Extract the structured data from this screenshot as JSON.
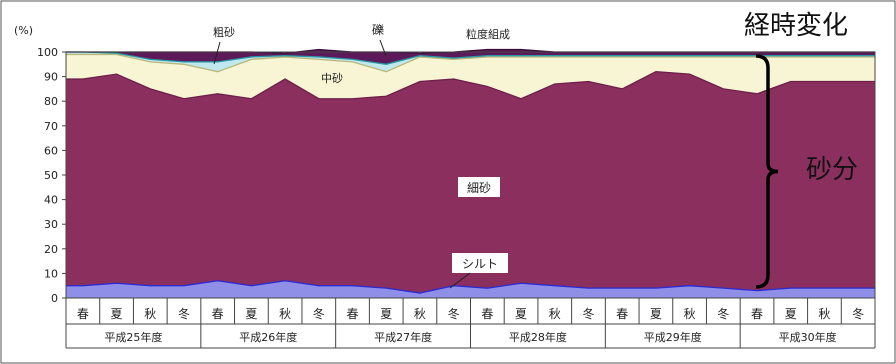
{
  "chart_data": {
    "type": "area",
    "stacked": true,
    "title": "粒度組成",
    "ylabel": "(%)",
    "ylim": [
      0,
      100
    ],
    "yticks": [
      0,
      10,
      20,
      30,
      40,
      50,
      60,
      70,
      80,
      90,
      100
    ],
    "categories": [
      "春",
      "夏",
      "秋",
      "冬",
      "春",
      "夏",
      "秋",
      "冬",
      "春",
      "夏",
      "秋",
      "冬",
      "春",
      "夏",
      "秋",
      "冬",
      "春",
      "夏",
      "秋",
      "冬",
      "春",
      "夏",
      "秋",
      "冬"
    ],
    "groups": [
      {
        "label": "平成25年度",
        "count": 4
      },
      {
        "label": "平成26年度",
        "count": 4
      },
      {
        "label": "平成27年度",
        "count": 4
      },
      {
        "label": "平成28年度",
        "count": 4
      },
      {
        "label": "平成29年度",
        "count": 4
      },
      {
        "label": "平成30年度",
        "count": 4
      }
    ],
    "series": [
      {
        "name": "シルト",
        "color": "#8f8fe8",
        "edge": "#2b2bd0",
        "values": [
          5,
          6,
          5,
          5,
          7,
          5,
          7,
          5,
          5,
          4,
          2,
          5,
          4,
          6,
          5,
          4,
          4,
          4,
          5,
          4,
          3,
          4,
          4,
          4
        ]
      },
      {
        "name": "細砂",
        "color": "#8b2f5e",
        "edge": "#6e1f4a",
        "values": [
          84,
          85,
          80,
          76,
          76,
          76,
          82,
          76,
          76,
          78,
          86,
          84,
          82,
          75,
          82,
          84,
          81,
          88,
          86,
          81,
          80,
          84,
          84,
          84
        ]
      },
      {
        "name": "中砂",
        "color": "#f7f5d4",
        "edge": "#b9b77a",
        "values": [
          10,
          8,
          11,
          14,
          9,
          16,
          9,
          16,
          15,
          10,
          10,
          8,
          12,
          17,
          11,
          10,
          13,
          6,
          7,
          13,
          15,
          10,
          10,
          10
        ]
      },
      {
        "name": "粗砂",
        "color": "#bfe9ee",
        "edge": "#2a98a4",
        "values": [
          1,
          0.5,
          1,
          1,
          4,
          1,
          0.5,
          1,
          1,
          3,
          0.5,
          0.5,
          0.5,
          0.5,
          0.5,
          0.5,
          0.5,
          0.5,
          0.5,
          0.5,
          0.5,
          0.5,
          0.5,
          0.5
        ]
      },
      {
        "name": "礫",
        "color": "#5c1a5a",
        "edge": "#3d0f3b",
        "values": [
          0,
          0.5,
          3,
          4,
          4,
          2,
          1,
          3,
          3,
          5,
          1,
          2.5,
          2.5,
          2.5,
          1.5,
          1.5,
          1.5,
          1.5,
          1.5,
          1.5,
          1.5,
          1.5,
          1.5,
          1.5
        ]
      }
    ],
    "annotations": {
      "heading": "経時変化",
      "sand_label": "砂分",
      "series_labels": [
        "粗砂",
        "礫",
        "中砂",
        "細砂",
        "シルト"
      ]
    }
  }
}
